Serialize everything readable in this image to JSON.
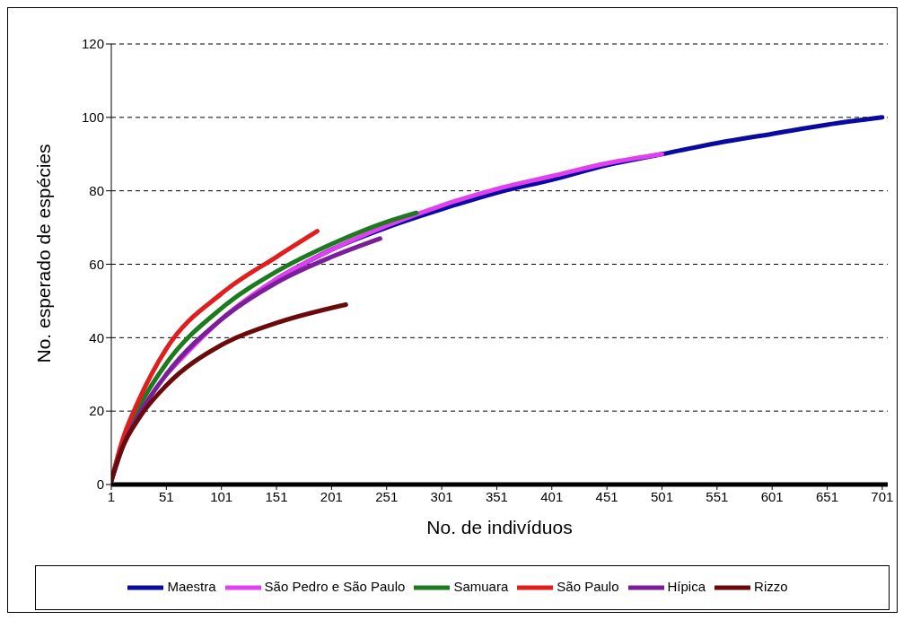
{
  "chart_data": {
    "type": "line",
    "xlabel": "No. de indivíduos",
    "ylabel": "No. esperado de espécies",
    "xlim": [
      1,
      706
    ],
    "xticks": [
      1,
      51,
      101,
      151,
      201,
      251,
      301,
      351,
      401,
      451,
      501,
      551,
      601,
      651,
      701
    ],
    "ylim": [
      0,
      120
    ],
    "yticks": [
      0,
      20,
      40,
      60,
      80,
      100,
      120
    ],
    "grid": "y",
    "legend": "bottom",
    "marker": "none",
    "line_style": "solid",
    "series": [
      {
        "name": "Maestra",
        "color": "#0a0aa0",
        "x": [
          151,
          201,
          251,
          301,
          351,
          401,
          451,
          501,
          551,
          601,
          651,
          701
        ],
        "values": [
          56,
          64,
          70,
          75,
          79.5,
          83,
          87,
          90,
          93,
          95.5,
          98,
          100
        ]
      },
      {
        "name": "São Pedro e São Paulo",
        "color": "#e040f0",
        "x": [
          51,
          101,
          151,
          201,
          251,
          301,
          351,
          401,
          451,
          501
        ],
        "values": [
          30,
          45,
          56,
          64,
          70.5,
          76,
          80.5,
          84,
          87.5,
          90
        ]
      },
      {
        "name": "Samuara",
        "color": "#1e7a1e",
        "x": [
          1,
          11,
          26,
          51,
          101,
          151,
          201,
          251,
          278
        ],
        "values": [
          1,
          11,
          21,
          33,
          48,
          58,
          65.5,
          71.5,
          74
        ]
      },
      {
        "name": "São Paulo",
        "color": "#e01e1e",
        "x": [
          1,
          11,
          26,
          51,
          101,
          151,
          188
        ],
        "values": [
          1,
          12,
          23,
          37,
          52,
          62,
          69
        ]
      },
      {
        "name": "Hípica",
        "color": "#7a1e9a",
        "x": [
          1,
          11,
          26,
          51,
          101,
          151,
          201,
          245
        ],
        "values": [
          1,
          10,
          19,
          30,
          45,
          55,
          62,
          67
        ]
      },
      {
        "name": "Rizzo",
        "color": "#6b0a0a",
        "x": [
          1,
          11,
          26,
          51,
          101,
          151,
          214
        ],
        "values": [
          1,
          10,
          18,
          27,
          38,
          44,
          49
        ]
      }
    ]
  }
}
